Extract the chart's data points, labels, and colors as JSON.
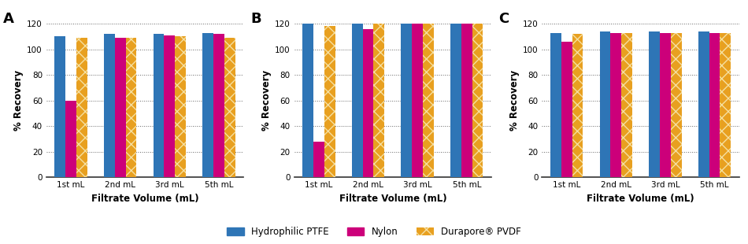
{
  "panels": [
    {
      "label": "A",
      "categories": [
        "1st mL",
        "2nd mL",
        "3rd mL",
        "5th mL"
      ],
      "blue": [
        110,
        112,
        112,
        113
      ],
      "pink": [
        60,
        109,
        111,
        112
      ],
      "gold": [
        109,
        109,
        110,
        109
      ]
    },
    {
      "label": "B",
      "categories": [
        "1st mL",
        "2nd mL",
        "3rd mL",
        "5th mL"
      ],
      "blue": [
        120,
        120,
        120,
        120
      ],
      "pink": [
        28,
        116,
        120,
        120
      ],
      "gold": [
        118,
        120,
        120,
        120
      ]
    },
    {
      "label": "C",
      "categories": [
        "1st mL",
        "2nd mL",
        "3rd mL",
        "5th mL"
      ],
      "blue": [
        113,
        114,
        114,
        114
      ],
      "pink": [
        106,
        113,
        113,
        113
      ],
      "gold": [
        112,
        113,
        113,
        113
      ]
    }
  ],
  "ylim": [
    0,
    120
  ],
  "yticks": [
    0,
    20,
    40,
    60,
    80,
    100,
    120
  ],
  "ylabel": "% Recovery",
  "xlabel": "Filtrate Volume (mL)",
  "blue_color": "#2e75b6",
  "pink_color": "#cc007a",
  "gold_color": "#e8a020",
  "legend_labels": [
    "Hydrophilic PTFE",
    "Nylon",
    "Durapore® PVDF"
  ],
  "bar_width": 0.22,
  "grid_color": "#666666",
  "bg_color": "#ffffff"
}
